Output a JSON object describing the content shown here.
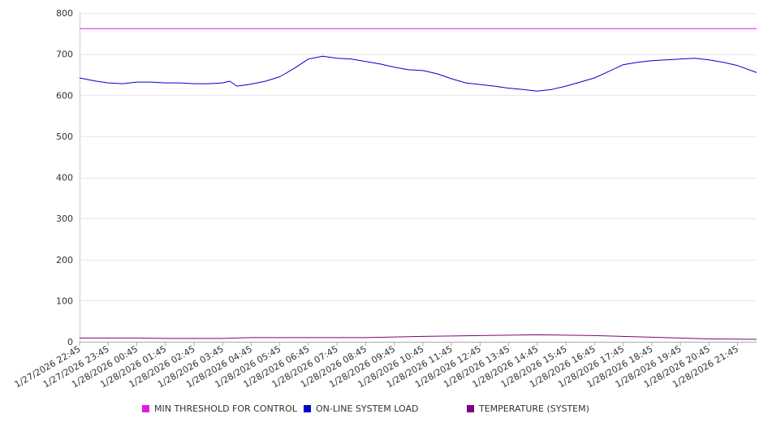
{
  "chart_data": {
    "type": "line",
    "ylim": [
      0,
      800
    ],
    "yticks": [
      0,
      100,
      200,
      300,
      400,
      500,
      600,
      700,
      800
    ],
    "grid": true,
    "legend_position": "bottom",
    "xlim": [
      "1/27/2026 22:45",
      "1/28/2026 22:25"
    ],
    "xtick_labels": [
      "1/27/2026 22:45",
      "1/27/2026 23:45",
      "1/28/2026 00:45",
      "1/28/2026 01:45",
      "1/28/2026 02:45",
      "1/28/2026 03:45",
      "1/28/2026 04:45",
      "1/28/2026 05:45",
      "1/28/2026 06:45",
      "1/28/2026 07:45",
      "1/28/2026 08:45",
      "1/28/2026 09:45",
      "1/28/2026 10:45",
      "1/28/2026 11:45",
      "1/28/2026 12:45",
      "1/28/2026 13:45",
      "1/28/2026 14:45",
      "1/28/2026 15:45",
      "1/28/2026 16:45",
      "1/28/2026 17:45",
      "1/28/2026 18:45",
      "1/28/2026 19:45",
      "1/28/2026 20:45",
      "1/28/2026 21:45"
    ],
    "series": [
      {
        "name": "MIN THRESHOLD FOR CONTROL",
        "color": "#e617e6",
        "x": [
          "1/27/2026 22:45",
          "1/28/2026 22:25"
        ],
        "values": [
          762,
          762
        ]
      },
      {
        "name": "ON-LINE SYSTEM LOAD",
        "color": "#0000cc",
        "x": [
          "1/27/2026 22:45",
          "1/27/2026 23:15",
          "1/27/2026 23:45",
          "1/28/2026 00:15",
          "1/28/2026 00:45",
          "1/28/2026 01:15",
          "1/28/2026 01:45",
          "1/28/2026 02:15",
          "1/28/2026 02:45",
          "1/28/2026 03:15",
          "1/28/2026 03:45",
          "1/28/2026 04:00",
          "1/28/2026 04:15",
          "1/28/2026 04:45",
          "1/28/2026 05:15",
          "1/28/2026 05:45",
          "1/28/2026 06:15",
          "1/28/2026 06:45",
          "1/28/2026 07:15",
          "1/28/2026 07:45",
          "1/28/2026 08:15",
          "1/28/2026 08:45",
          "1/28/2026 09:15",
          "1/28/2026 09:45",
          "1/28/2026 10:15",
          "1/28/2026 10:45",
          "1/28/2026 11:15",
          "1/28/2026 11:45",
          "1/28/2026 12:15",
          "1/28/2026 12:45",
          "1/28/2026 13:15",
          "1/28/2026 13:45",
          "1/28/2026 14:15",
          "1/28/2026 14:45",
          "1/28/2026 15:15",
          "1/28/2026 15:45",
          "1/28/2026 16:15",
          "1/28/2026 16:45",
          "1/28/2026 17:15",
          "1/28/2026 17:45",
          "1/28/2026 18:15",
          "1/28/2026 18:45",
          "1/28/2026 19:15",
          "1/28/2026 19:45",
          "1/28/2026 20:15",
          "1/28/2026 20:45",
          "1/28/2026 21:15",
          "1/28/2026 21:45",
          "1/28/2026 22:25"
        ],
        "values": [
          642,
          635,
          630,
          628,
          632,
          632,
          630,
          630,
          628,
          628,
          630,
          634,
          622,
          627,
          634,
          645,
          665,
          688,
          695,
          690,
          688,
          682,
          676,
          668,
          662,
          660,
          652,
          640,
          630,
          626,
          622,
          617,
          614,
          610,
          614,
          622,
          632,
          642,
          658,
          674,
          680,
          684,
          686,
          688,
          690,
          686,
          680,
          672,
          655
        ]
      },
      {
        "name": "TEMPERATURE (SYSTEM)",
        "color": "#800080",
        "x": [
          "1/27/2026 22:45",
          "1/28/2026 00:45",
          "1/28/2026 01:45",
          "1/28/2026 03:45",
          "1/28/2026 04:45",
          "1/28/2026 06:45",
          "1/28/2026 08:45",
          "1/28/2026 10:45",
          "1/28/2026 12:45",
          "1/28/2026 14:45",
          "1/28/2026 16:45",
          "1/28/2026 18:45",
          "1/28/2026 20:45",
          "1/28/2026 22:25"
        ],
        "values": [
          9,
          9,
          8,
          8,
          10,
          10,
          10,
          13,
          15,
          17,
          15,
          11,
          7,
          6
        ]
      }
    ]
  }
}
